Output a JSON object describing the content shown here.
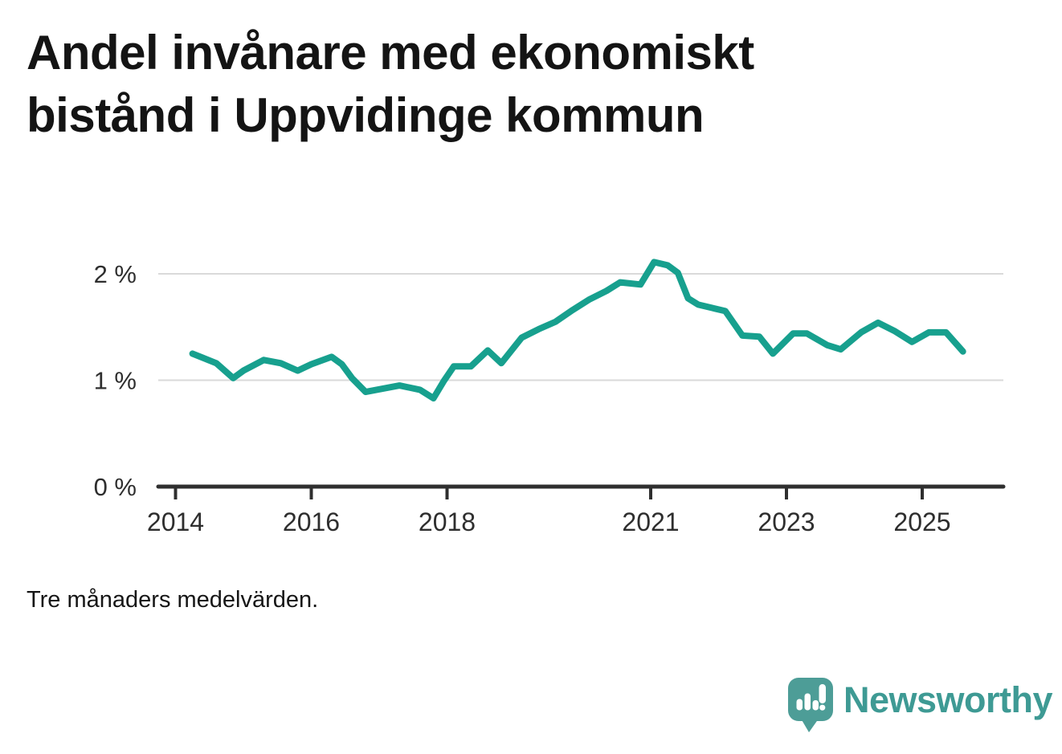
{
  "header": {
    "title_line1": "Andel invånare med ekonomiskt",
    "title_line2": "bistånd i Uppvidinge kommun"
  },
  "note": {
    "text": "Tre månaders medelvärden."
  },
  "brand": {
    "name": "Newsworthy",
    "logo_icon": "speech-bubble-bar-chart-icon",
    "text_color": "#3e9a94",
    "mark_color": "#4d9d97"
  },
  "colors": {
    "line": "#17a08e",
    "grid": "#dadada",
    "axis": "#2f2f2f",
    "tick_text": "#2e2e2e"
  },
  "chart_data": {
    "type": "line",
    "title": "Andel invånare med ekonomiskt bistånd i Uppvidinge kommun",
    "subtitle": "",
    "note": "Tre månaders medelvärden.",
    "xlabel": "",
    "ylabel": "",
    "unit": "%",
    "grid": "horizontal",
    "legend": "none",
    "xlim": [
      2013.75,
      2026.2
    ],
    "ylim": [
      0,
      2.3
    ],
    "xticks": [
      {
        "value": 2014,
        "label": "2014"
      },
      {
        "value": 2016,
        "label": "2016"
      },
      {
        "value": 2018,
        "label": "2018"
      },
      {
        "value": 2021,
        "label": "2021"
      },
      {
        "value": 2023,
        "label": "2023"
      },
      {
        "value": 2025,
        "label": "2025"
      }
    ],
    "yticks": [
      {
        "value": 0,
        "label": "0 %"
      },
      {
        "value": 1,
        "label": "1 %"
      },
      {
        "value": 2,
        "label": "2 %"
      }
    ],
    "series": [
      {
        "name": "Andel invånare med ekonomiskt bistånd",
        "color": "#17a08e",
        "points": [
          [
            2014.25,
            1.25
          ],
          [
            2014.6,
            1.16
          ],
          [
            2014.85,
            1.02
          ],
          [
            2015.0,
            1.09
          ],
          [
            2015.3,
            1.19
          ],
          [
            2015.55,
            1.16
          ],
          [
            2015.8,
            1.09
          ],
          [
            2016.0,
            1.15
          ],
          [
            2016.3,
            1.22
          ],
          [
            2016.45,
            1.15
          ],
          [
            2016.6,
            1.02
          ],
          [
            2016.8,
            0.89
          ],
          [
            2017.05,
            0.92
          ],
          [
            2017.3,
            0.95
          ],
          [
            2017.6,
            0.91
          ],
          [
            2017.8,
            0.83
          ],
          [
            2017.95,
            0.99
          ],
          [
            2018.1,
            1.13
          ],
          [
            2018.35,
            1.13
          ],
          [
            2018.6,
            1.28
          ],
          [
            2018.8,
            1.16
          ],
          [
            2019.1,
            1.4
          ],
          [
            2019.35,
            1.48
          ],
          [
            2019.6,
            1.55
          ],
          [
            2019.85,
            1.66
          ],
          [
            2020.1,
            1.76
          ],
          [
            2020.35,
            1.84
          ],
          [
            2020.55,
            1.92
          ],
          [
            2020.85,
            1.9
          ],
          [
            2021.05,
            2.11
          ],
          [
            2021.25,
            2.08
          ],
          [
            2021.4,
            2.01
          ],
          [
            2021.55,
            1.77
          ],
          [
            2021.7,
            1.71
          ],
          [
            2021.9,
            1.68
          ],
          [
            2022.1,
            1.65
          ],
          [
            2022.35,
            1.42
          ],
          [
            2022.6,
            1.41
          ],
          [
            2022.8,
            1.25
          ],
          [
            2023.1,
            1.44
          ],
          [
            2023.3,
            1.44
          ],
          [
            2023.6,
            1.33
          ],
          [
            2023.8,
            1.29
          ],
          [
            2024.1,
            1.45
          ],
          [
            2024.35,
            1.54
          ],
          [
            2024.6,
            1.46
          ],
          [
            2024.85,
            1.36
          ],
          [
            2025.1,
            1.45
          ],
          [
            2025.35,
            1.45
          ],
          [
            2025.6,
            1.27
          ]
        ]
      }
    ]
  }
}
